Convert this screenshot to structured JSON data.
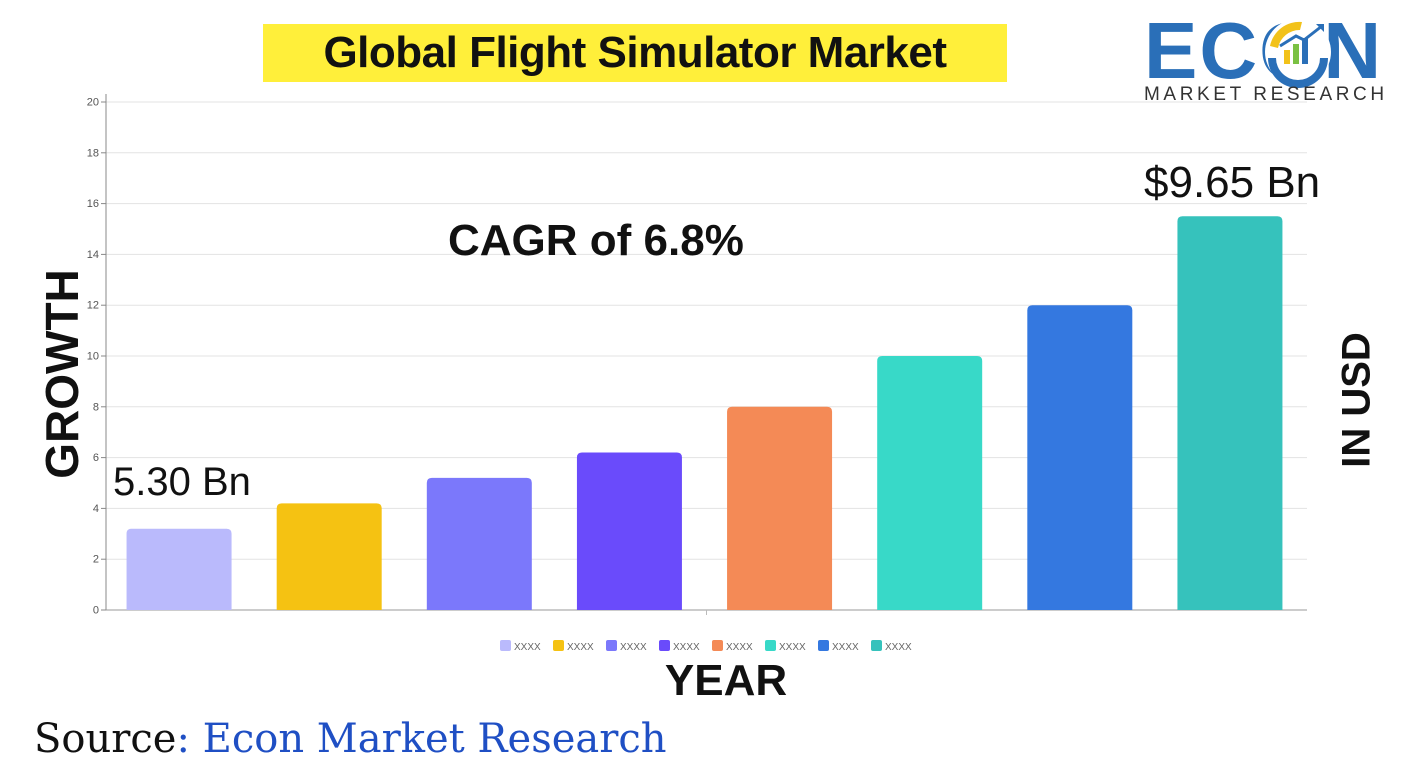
{
  "header": {
    "title": "Global Flight Simulator Market"
  },
  "logo": {
    "word": "ECON",
    "tagline": "MARKET RESEARCH",
    "icon": "econ-growth-arrow-icon"
  },
  "annotations": {
    "cagr": "CAGR of 6.8%",
    "start_value": "5.30 Bn",
    "end_value": "$9.65 Bn"
  },
  "source": {
    "prefix": "Source",
    "name": ": Econ Market Research"
  },
  "chart_data": {
    "type": "bar",
    "title": "Global Flight Simulator Market",
    "xlabel": "YEAR",
    "ylabel": "GROWTH",
    "ylabel_right": "IN USD",
    "ylim": [
      0,
      20
    ],
    "yticks": [
      0,
      2,
      4,
      6,
      8,
      10,
      12,
      14,
      16,
      18,
      20
    ],
    "grid": true,
    "legend_position": "bottom",
    "categories": [
      "XXXX",
      "XXXX",
      "XXXX",
      "XXXX",
      "XXXX",
      "XXXX",
      "XXXX",
      "XXXX"
    ],
    "values": [
      3.2,
      4.2,
      5.2,
      6.2,
      8.0,
      10.0,
      12.0,
      15.5
    ],
    "colors": [
      "#babafc",
      "#f5c212",
      "#7b78fb",
      "#6a4bfb",
      "#f48a56",
      "#38d9c8",
      "#3478e0",
      "#36c2bc"
    ]
  }
}
